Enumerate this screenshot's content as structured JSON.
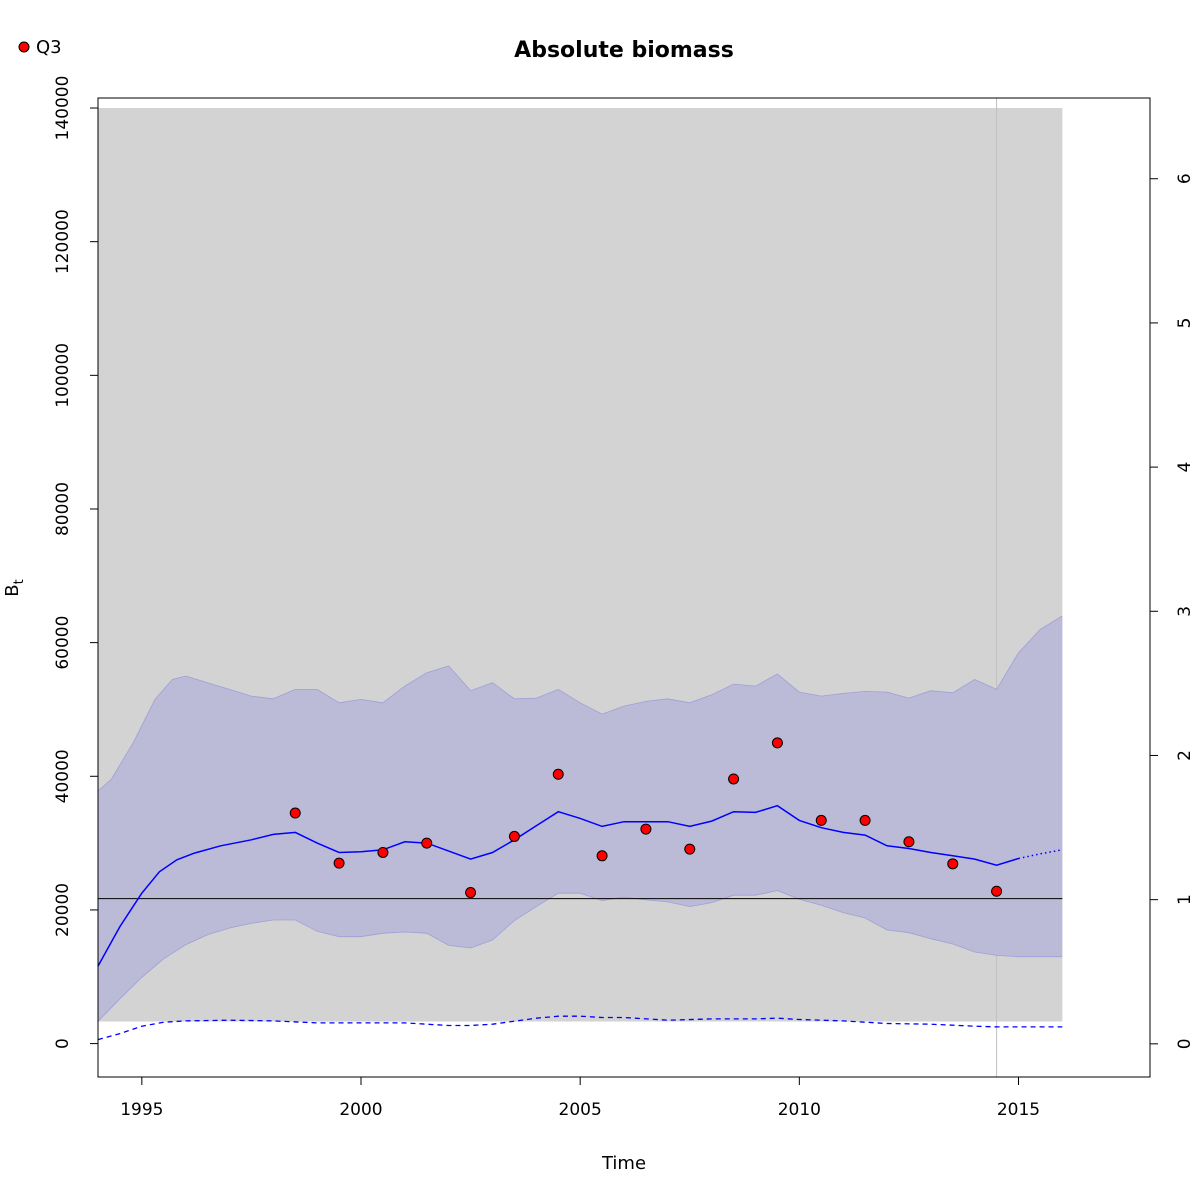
{
  "chart_data": {
    "type": "line",
    "title": "Absolute biomass",
    "xlabel": "Time",
    "ylabel": "B",
    "ylabel_subscript": "t",
    "xlim": [
      1994,
      2018
    ],
    "ylim": [
      -5000,
      141500
    ],
    "y2lim": [
      -0.23,
      6.56
    ],
    "x_ticks": [
      "1995",
      "2000",
      "2005",
      "2010",
      "2015"
    ],
    "y_ticks": [
      "0",
      "20000",
      "40000",
      "60000",
      "80000",
      "100000",
      "120000",
      "140000"
    ],
    "y2_ticks": [
      "0",
      "1",
      "2",
      "3",
      "4",
      "5",
      "6"
    ],
    "legend": {
      "position": "top-left",
      "entries": [
        "Q3"
      ]
    },
    "grid": false,
    "colors": {
      "background_band": "#d3d3d3",
      "confidence_band": "#bbbbd8",
      "confidence_edge": "#8f8fd8",
      "estimate_line": "#0000ff",
      "observations": "#ff0000",
      "reference_line": "#000000",
      "vertical_marker": "#c0c0c0"
    },
    "background_band": {
      "x": [
        1994,
        2016
      ],
      "y": [
        3300,
        140000
      ]
    },
    "reference_line_y": 21700,
    "vertical_marker_x": 2014.5,
    "series": [
      {
        "name": "Q3",
        "kind": "points",
        "x": [
          1998.5,
          1999.5,
          2000.5,
          2001.5,
          2002.5,
          2003.5,
          2004.5,
          2005.5,
          2006.5,
          2007.5,
          2008.5,
          2009.5,
          2010.5,
          2011.5,
          2012.5,
          2013.5,
          2014.5
        ],
        "y": [
          34500,
          27000,
          28600,
          30000,
          22600,
          31000,
          40300,
          28100,
          32100,
          29100,
          39600,
          45000,
          33400,
          33400,
          30200,
          26900,
          22800
        ]
      },
      {
        "kind": "estimate",
        "x": [
          1994.0,
          1994.5,
          1995.0,
          1995.4,
          1995.8,
          1996.2,
          1996.8,
          1997.5,
          1998.0,
          1998.5,
          1999.0,
          1999.5,
          2000.0,
          2000.5,
          2001.0,
          2001.5,
          2002.0,
          2002.5,
          2003.0,
          2003.5,
          2004.0,
          2004.5,
          2005.0,
          2005.5,
          2006.0,
          2006.5,
          2007.0,
          2007.5,
          2008.0,
          2008.5,
          2009.0,
          2009.5,
          2010.0,
          2010.5,
          2011.0,
          2011.5,
          2012.0,
          2012.5,
          2013.0,
          2013.5,
          2014.0,
          2014.5,
          2015.0
        ],
        "y": [
          11600,
          17500,
          22500,
          25700,
          27500,
          28500,
          29600,
          30500,
          31300,
          31600,
          30000,
          28600,
          28700,
          29000,
          30200,
          30000,
          28800,
          27600,
          28600,
          30500,
          32600,
          34700,
          33700,
          32500,
          33200,
          33200,
          33200,
          32500,
          33300,
          34700,
          34600,
          35600,
          33400,
          32300,
          31600,
          31200,
          29600,
          29200,
          28600,
          28100,
          27600,
          26700,
          27700
        ]
      },
      {
        "kind": "forecast",
        "x": [
          2015.0,
          2015.5,
          2016.0
        ],
        "y": [
          27700,
          28400,
          29000
        ]
      },
      {
        "kind": "lower_dashed",
        "x": [
          1994.0,
          1994.5,
          1995.0,
          1995.5,
          1996.0,
          1997.0,
          1998.0,
          1999.0,
          2000.0,
          2001.0,
          2002.0,
          2002.5,
          2003.0,
          2004.0,
          2004.5,
          2005.0,
          2005.5,
          2006.0,
          2007.0,
          2008.0,
          2009.0,
          2009.5,
          2010.0,
          2011.0,
          2012.0,
          2013.0,
          2014.0,
          2014.5,
          2016.0
        ],
        "y": [
          600,
          1500,
          2600,
          3200,
          3400,
          3500,
          3400,
          3100,
          3100,
          3100,
          2700,
          2700,
          2900,
          3800,
          4100,
          4100,
          3900,
          3900,
          3500,
          3700,
          3700,
          3800,
          3600,
          3400,
          3000,
          2900,
          2600,
          2500,
          2500
        ]
      },
      {
        "kind": "confidence_upper",
        "x": [
          1994.0,
          1994.3,
          1994.8,
          1995.3,
          1995.7,
          1996.0,
          1996.5,
          1997.0,
          1997.5,
          1998.0,
          1998.5,
          1999.0,
          1999.5,
          2000.0,
          2000.5,
          2001.0,
          2001.5,
          2002.0,
          2002.5,
          2003.0,
          2003.5,
          2004.0,
          2004.5,
          2005.0,
          2005.5,
          2006.0,
          2006.5,
          2007.0,
          2007.5,
          2008.0,
          2008.5,
          2009.0,
          2009.5,
          2010.0,
          2010.5,
          2011.0,
          2011.5,
          2012.0,
          2012.5,
          2013.0,
          2013.5,
          2014.0,
          2014.5,
          2015.0,
          2015.5,
          2016.0
        ],
        "y": [
          37800,
          39500,
          45000,
          51500,
          54500,
          55000,
          54000,
          53000,
          52000,
          51600,
          53000,
          53000,
          51000,
          51500,
          51000,
          53500,
          55500,
          56500,
          52800,
          54000,
          51600,
          51700,
          53000,
          51000,
          49300,
          50500,
          51200,
          51600,
          51000,
          52200,
          53800,
          53500,
          55300,
          52600,
          52000,
          52400,
          52700,
          52600,
          51700,
          52800,
          52500,
          54500,
          53000,
          58500,
          62000,
          64000
        ]
      },
      {
        "kind": "confidence_lower",
        "x": [
          1994.0,
          1994.5,
          1995.0,
          1995.5,
          1996.0,
          1996.5,
          1997.0,
          1997.5,
          1998.0,
          1998.5,
          1999.0,
          1999.5,
          2000.0,
          2000.5,
          2001.0,
          2001.5,
          2002.0,
          2002.5,
          2003.0,
          2003.5,
          2004.0,
          2004.5,
          2005.0,
          2005.5,
          2006.0,
          2006.5,
          2007.0,
          2007.5,
          2008.0,
          2008.5,
          2009.0,
          2009.5,
          2010.0,
          2010.5,
          2011.0,
          2011.5,
          2012.0,
          2012.5,
          2013.0,
          2013.5,
          2014.0,
          2014.5,
          2015.0,
          2015.5,
          2016.0
        ],
        "y": [
          3300,
          6700,
          9900,
          12700,
          14800,
          16300,
          17300,
          18000,
          18500,
          18500,
          16800,
          16000,
          16000,
          16500,
          16700,
          16500,
          14700,
          14300,
          15500,
          18400,
          20500,
          22500,
          22500,
          21400,
          21900,
          21500,
          21200,
          20500,
          21100,
          22200,
          22200,
          22900,
          21600,
          20700,
          19600,
          18800,
          17000,
          16600,
          15700,
          14900,
          13700,
          13200,
          13000,
          13000,
          13000
        ]
      }
    ]
  }
}
